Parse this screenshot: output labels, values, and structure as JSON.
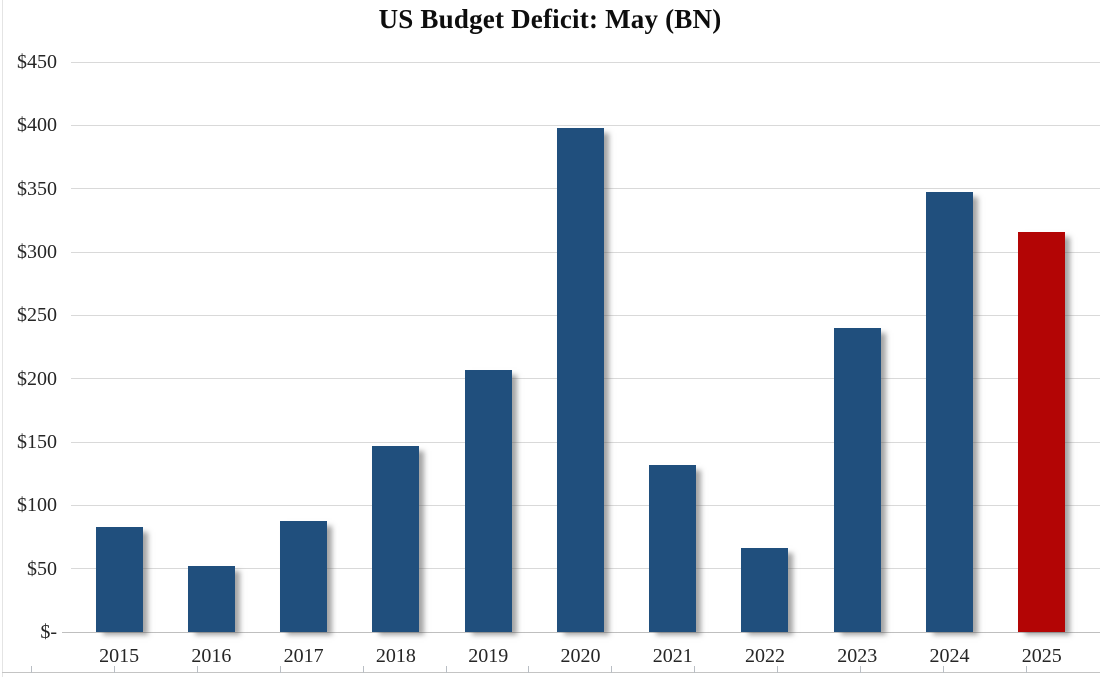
{
  "chart_data": {
    "type": "bar",
    "title": "US Budget Deficit: May (BN)",
    "categories": [
      "2015",
      "2016",
      "2017",
      "2018",
      "2019",
      "2020",
      "2021",
      "2022",
      "2023",
      "2024",
      "2025"
    ],
    "values": [
      83,
      52,
      88,
      147,
      207,
      398,
      132,
      66,
      240,
      347,
      316
    ],
    "xlabel": "",
    "ylabel": "",
    "unit": "billions USD",
    "ylim": [
      0,
      450
    ],
    "ytick_values": [
      0,
      50,
      100,
      150,
      200,
      250,
      300,
      350,
      400,
      450
    ],
    "ytick_labels": [
      "$-",
      "$50",
      "$100",
      "$150",
      "$200",
      "$250",
      "$300",
      "$350",
      "$400",
      "$450"
    ],
    "grid": true,
    "legend_position": "none",
    "bar_color": "#204f7d",
    "highlight_color": "#b30505",
    "highlight_category": "2025",
    "gridline_color": "#d9d9d9",
    "axis_line_color": "#bfbfbf",
    "label_color": "#262626"
  }
}
